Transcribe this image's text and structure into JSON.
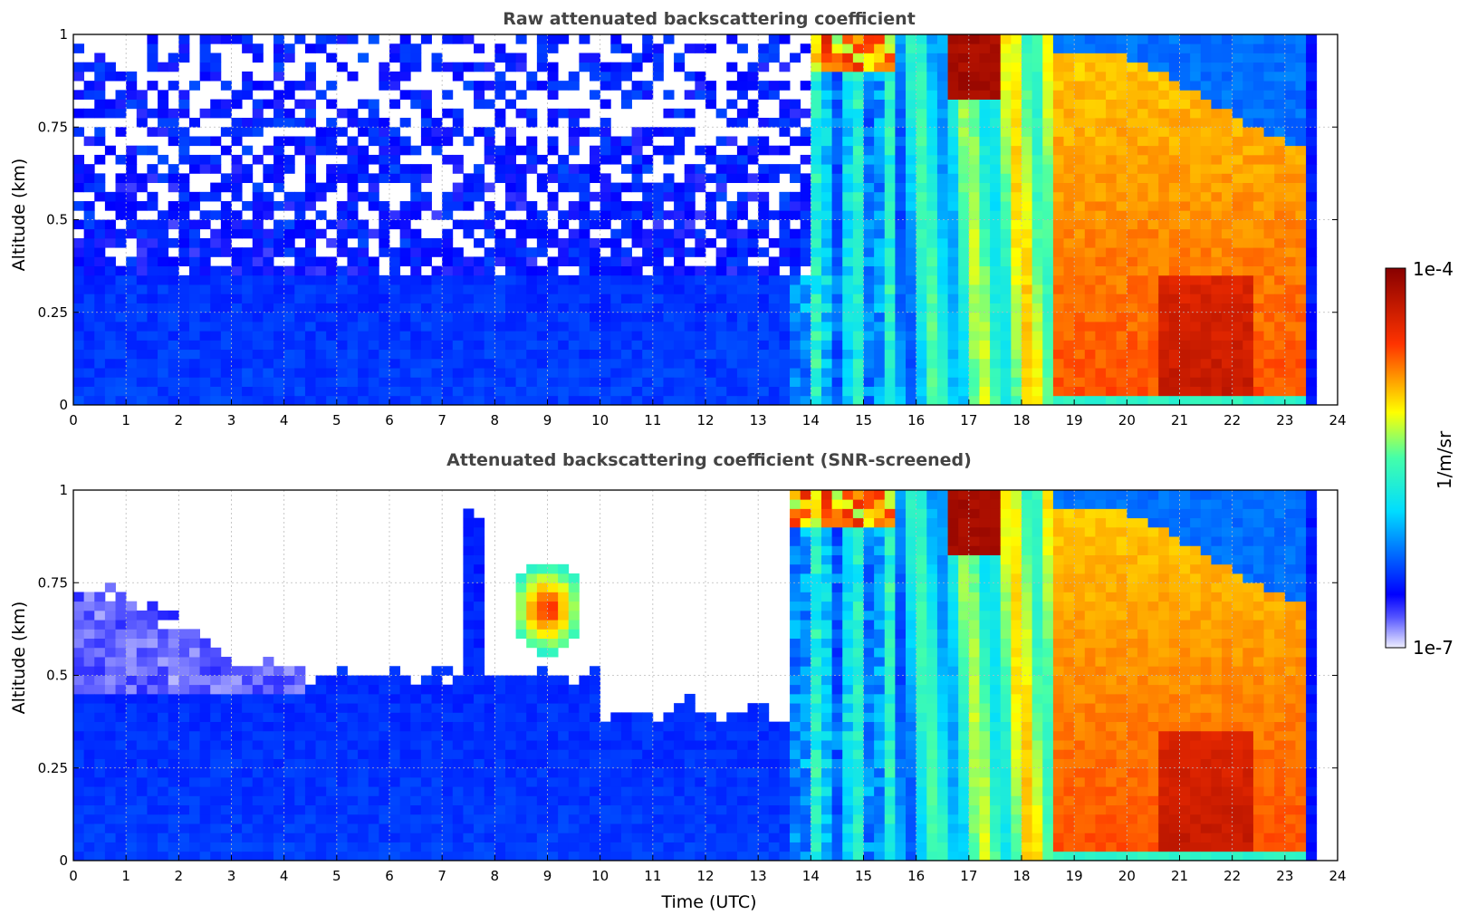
{
  "chart_data": [
    {
      "type": "heatmap",
      "title": "Raw attenuated backscattering coefficient",
      "xlabel": "",
      "ylabel": "Altitude (km)",
      "xlim": [
        0,
        24
      ],
      "ylim": [
        0,
        1
      ],
      "xticks": [
        "0",
        "1",
        "2",
        "3",
        "4",
        "5",
        "6",
        "7",
        "8",
        "9",
        "10",
        "11",
        "12",
        "13",
        "14",
        "15",
        "16",
        "17",
        "18",
        "19",
        "20",
        "21",
        "22",
        "23",
        "24"
      ],
      "yticks": [
        "0",
        "0.25",
        "0.5",
        "0.75",
        "1"
      ],
      "grid": true,
      "variant": "raw"
    },
    {
      "type": "heatmap",
      "title": "Attenuated backscattering coefficient (SNR-screened)",
      "xlabel": "Time (UTC)",
      "ylabel": "Altitude (km)",
      "xlim": [
        0,
        24
      ],
      "ylim": [
        0,
        1
      ],
      "xticks": [
        "0",
        "1",
        "2",
        "3",
        "4",
        "5",
        "6",
        "7",
        "8",
        "9",
        "10",
        "11",
        "12",
        "13",
        "14",
        "15",
        "16",
        "17",
        "18",
        "19",
        "20",
        "21",
        "22",
        "23",
        "24"
      ],
      "yticks": [
        "0",
        "0.25",
        "0.5",
        "0.75",
        "1"
      ],
      "grid": true,
      "variant": "screened"
    }
  ],
  "colorbar": {
    "label": "1/m/sr",
    "min_label": "1e-7",
    "max_label": "1e-4",
    "scale": "log",
    "colormap": "jet"
  }
}
